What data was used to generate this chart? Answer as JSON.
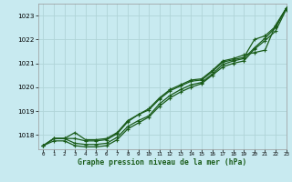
{
  "title": "Graphe pression niveau de la mer (hPa)",
  "bg_color": "#c8eaf0",
  "grid_color": "#b0d4d8",
  "line_color": "#1a5c1a",
  "marker_color": "#1a5c1a",
  "xlim": [
    -0.5,
    23
  ],
  "ylim": [
    1017.4,
    1023.5
  ],
  "yticks": [
    1018,
    1019,
    1020,
    1021,
    1022,
    1023
  ],
  "xticks": [
    0,
    1,
    2,
    3,
    4,
    5,
    6,
    7,
    8,
    9,
    10,
    11,
    12,
    13,
    14,
    15,
    16,
    17,
    18,
    19,
    20,
    21,
    22,
    23
  ],
  "line1": [
    1017.55,
    1017.85,
    1017.85,
    1017.85,
    1017.75,
    1017.75,
    1017.8,
    1018.05,
    1018.55,
    1018.85,
    1019.05,
    1019.5,
    1019.85,
    1020.05,
    1020.25,
    1020.3,
    1020.65,
    1021.05,
    1021.15,
    1021.25,
    1022.0,
    1022.15,
    1022.55,
    1023.3
  ],
  "line2": [
    1017.55,
    1017.85,
    1017.85,
    1018.1,
    1017.8,
    1017.8,
    1017.85,
    1018.1,
    1018.6,
    1018.85,
    1019.1,
    1019.55,
    1019.9,
    1020.1,
    1020.3,
    1020.35,
    1020.7,
    1021.1,
    1021.2,
    1021.35,
    1021.45,
    1021.55,
    1022.6,
    1023.3
  ],
  "line3": [
    1017.55,
    1017.85,
    1017.85,
    1017.65,
    1017.6,
    1017.6,
    1017.65,
    1017.9,
    1018.35,
    1018.6,
    1018.8,
    1019.3,
    1019.65,
    1019.9,
    1020.1,
    1020.2,
    1020.55,
    1020.95,
    1021.1,
    1021.2,
    1021.65,
    1022.05,
    1022.5,
    1023.3
  ],
  "line4": [
    1017.55,
    1017.75,
    1017.75,
    1017.55,
    1017.5,
    1017.5,
    1017.55,
    1017.8,
    1018.25,
    1018.5,
    1018.75,
    1019.2,
    1019.55,
    1019.8,
    1020.0,
    1020.15,
    1020.5,
    1020.85,
    1021.0,
    1021.1,
    1021.6,
    1021.95,
    1022.35,
    1023.25
  ]
}
